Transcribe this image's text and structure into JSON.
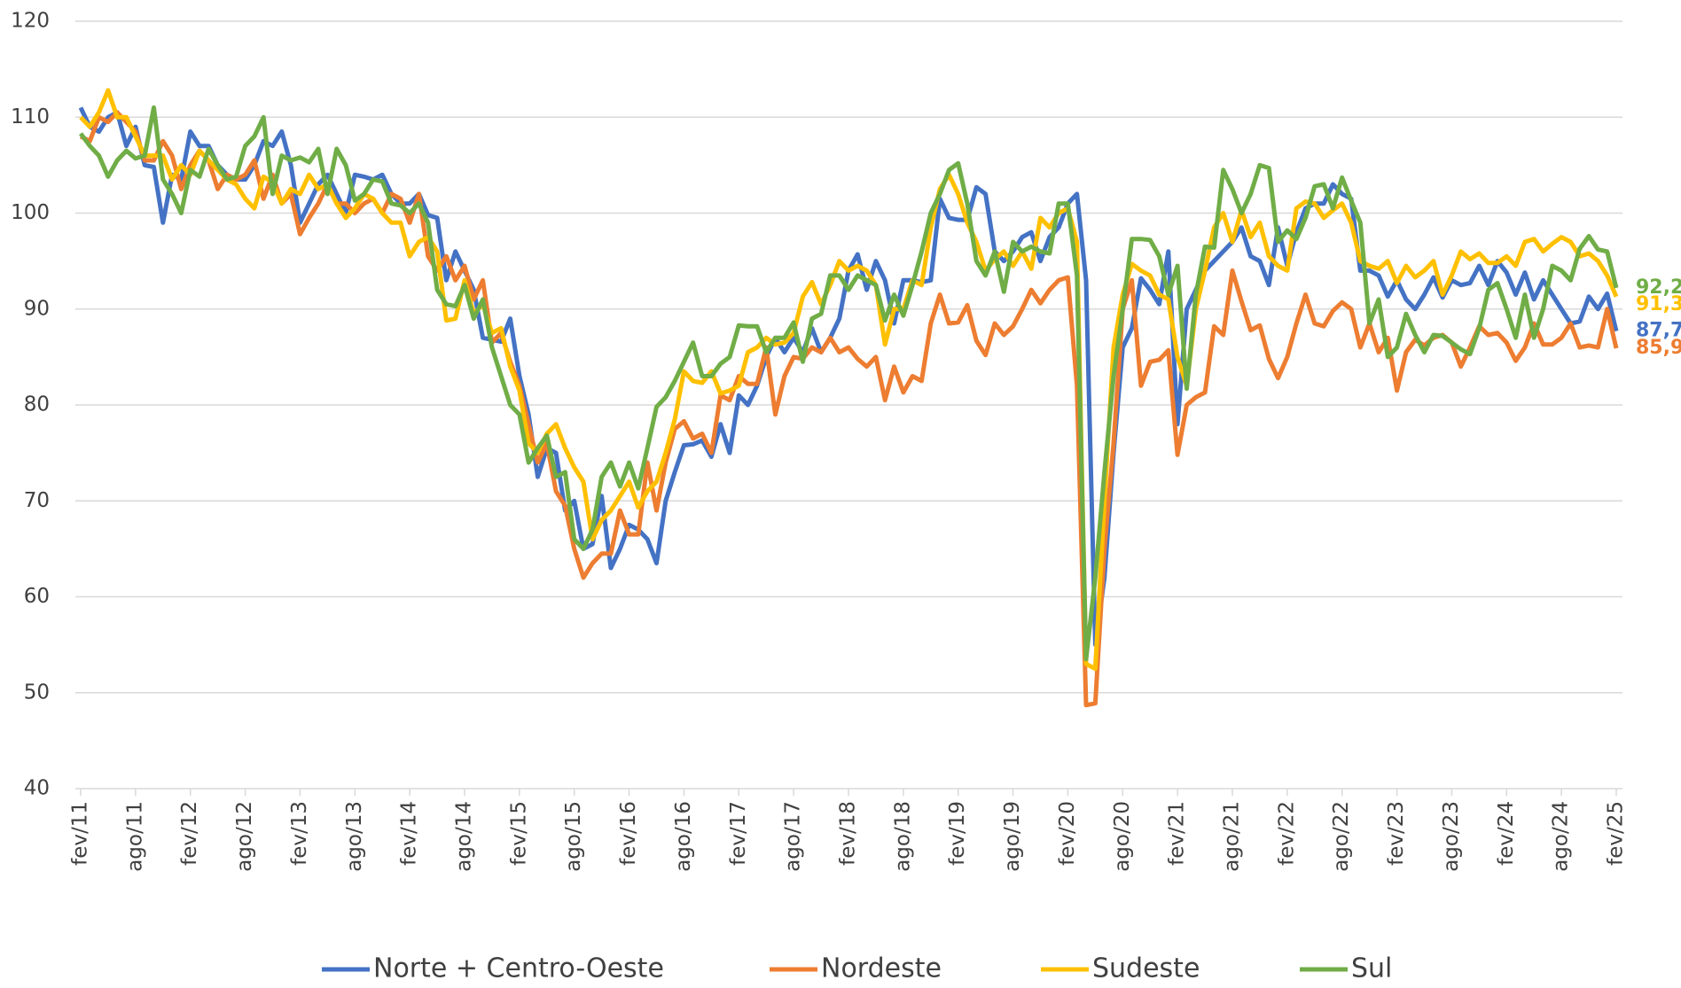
{
  "chart_data": {
    "type": "line",
    "categories": [
      "fev/11",
      null,
      null,
      null,
      null,
      null,
      "ago/11",
      null,
      null,
      null,
      null,
      null,
      "fev/12",
      null,
      null,
      null,
      null,
      null,
      "ago/12",
      null,
      null,
      null,
      null,
      null,
      "fev/13",
      null,
      null,
      null,
      null,
      null,
      "ago/13",
      null,
      null,
      null,
      null,
      null,
      "fev/14",
      null,
      null,
      null,
      null,
      null,
      "ago/14",
      null,
      null,
      null,
      null,
      null,
      "fev/15",
      null,
      null,
      null,
      null,
      null,
      "ago/15",
      null,
      null,
      null,
      null,
      null,
      "fev/16",
      null,
      null,
      null,
      null,
      null,
      "ago/16",
      null,
      null,
      null,
      null,
      null,
      "fev/17",
      null,
      null,
      null,
      null,
      null,
      "ago/17",
      null,
      null,
      null,
      null,
      null,
      "fev/18",
      null,
      null,
      null,
      null,
      null,
      "ago/18",
      null,
      null,
      null,
      null,
      null,
      "fev/19",
      null,
      null,
      null,
      null,
      null,
      "ago/19",
      null,
      null,
      null,
      null,
      null,
      "fev/20",
      null,
      null,
      null,
      null,
      null,
      "ago/20",
      null,
      null,
      null,
      null,
      null,
      "fev/21",
      null,
      null,
      null,
      null,
      null,
      "ago/21",
      null,
      null,
      null,
      null,
      null,
      "fev/22",
      null,
      null,
      null,
      null,
      null,
      "ago/22",
      null,
      null,
      null,
      null,
      null,
      "fev/23",
      null,
      null,
      null,
      null,
      null,
      "ago/23",
      null,
      null,
      null,
      null,
      null,
      "fev/24",
      null,
      null,
      null,
      null,
      null,
      "ago/24",
      null,
      null,
      null,
      null,
      null,
      "fev/25"
    ],
    "series": [
      {
        "name": "Norte + Centro-Oeste",
        "color": "#4472c4",
        "value_labels": {
          "168": "87,7"
        },
        "values": [
          111,
          109,
          108.5,
          110,
          110.5,
          107,
          109,
          105,
          104.8,
          99,
          104,
          103.5,
          108.5,
          107,
          107,
          105,
          104,
          103.5,
          103.5,
          105,
          107.5,
          107,
          108.5,
          105,
          99,
          101,
          103,
          104,
          102,
          100,
          104,
          103.8,
          103.5,
          104,
          102,
          101,
          101,
          102,
          99.8,
          99.5,
          93,
          96,
          94,
          92,
          87,
          86.8,
          86.6,
          89,
          83,
          79,
          72.5,
          75.5,
          75,
          69,
          70,
          65,
          65.5,
          70.5,
          63,
          65,
          67.5,
          67,
          66,
          63.5,
          70,
          73,
          75.8,
          75.9,
          76.3,
          74.6,
          78,
          75,
          81,
          80,
          82,
          85,
          87,
          85.5,
          87,
          85.5,
          88,
          85.5,
          87,
          89,
          94,
          95.7,
          92,
          95,
          93,
          88.5,
          93,
          93,
          92.8,
          93,
          101.5,
          99.5,
          99.3,
          99.3,
          102.7,
          102,
          96,
          95,
          96,
          97.5,
          98,
          95,
          97.5,
          98.5,
          101,
          102,
          93,
          55,
          62,
          75,
          86,
          88,
          93.2,
          92,
          90.5,
          96,
          78,
          90,
          92,
          94,
          95,
          96,
          97,
          98.5,
          95.5,
          95,
          92.5,
          98.5,
          94.5,
          98,
          100.5,
          101,
          101,
          103,
          102,
          101.5,
          94,
          94,
          93.5,
          91.3,
          93,
          91,
          90,
          91.5,
          93.3,
          91.2,
          93,
          92.5,
          92.7,
          94.5,
          92.5,
          95,
          93.8,
          91.5,
          93.8,
          91,
          93,
          91.5,
          90,
          88.5,
          88.7,
          91.3,
          90,
          91.6,
          87.7
        ]
      },
      {
        "name": "Nordeste",
        "color": "#ed7d31",
        "value_labels": {
          "168": "85,9"
        },
        "values": [
          108,
          107.5,
          110,
          109.5,
          110.5,
          109.5,
          108.5,
          105.5,
          105.5,
          107.5,
          106,
          102.5,
          105,
          106.5,
          105.5,
          102.5,
          104,
          103.5,
          104,
          105.5,
          101.5,
          104,
          101,
          102,
          97.8,
          99.5,
          101,
          103,
          101,
          101,
          100,
          101,
          101.5,
          100,
          102,
          101.5,
          99,
          102,
          95.5,
          94,
          95.5,
          93,
          94.5,
          91,
          93,
          86.5,
          87.5,
          84.5,
          82,
          78,
          74,
          76,
          71,
          69.5,
          65,
          62,
          63.5,
          64.5,
          64.5,
          69,
          66.5,
          66.5,
          74,
          69,
          74,
          77.5,
          78.3,
          76.5,
          77,
          75,
          81,
          80.5,
          83,
          82.2,
          82.2,
          86,
          79,
          83,
          85,
          84.8,
          86,
          85.5,
          87,
          85.5,
          86,
          84.8,
          84,
          85,
          80.5,
          84,
          81.3,
          83,
          82.5,
          88.5,
          91.5,
          88.5,
          88.6,
          90.4,
          86.7,
          85.2,
          88.5,
          87.3,
          88.2,
          90,
          92,
          90.6,
          92,
          93,
          93.3,
          82,
          48.7,
          48.9,
          65,
          76,
          90,
          93,
          82,
          84.5,
          84.7,
          85.7,
          74.8,
          80,
          80.8,
          81.3,
          88.2,
          87.3,
          94,
          90.8,
          87.8,
          88.3,
          84.8,
          82.8,
          85,
          88.5,
          91.5,
          88.5,
          88.2,
          89.8,
          90.7,
          90,
          86,
          88.5,
          85.5,
          87,
          81.5,
          85.5,
          86.8,
          86.2,
          87,
          87.3,
          86.5,
          84,
          86,
          88.2,
          87.3,
          87.5,
          86.5,
          84.6,
          86,
          88.5,
          86.3,
          86.3,
          87,
          88.5,
          86,
          86.2,
          86,
          90,
          85.9
        ]
      },
      {
        "name": "Sudeste",
        "color": "#ffc000",
        "value_labels": {
          "168": "91,3"
        },
        "values": [
          110,
          109,
          110.5,
          112.8,
          110,
          110,
          108,
          106,
          106,
          106,
          103.5,
          105,
          104,
          106.5,
          105.5,
          104.5,
          103.5,
          103,
          101.5,
          100.5,
          103.8,
          103.2,
          101,
          102.5,
          102,
          104,
          102.5,
          103,
          101,
          99.5,
          100.5,
          102,
          101.5,
          100,
          99,
          99,
          95.5,
          97,
          97.5,
          96,
          88.8,
          89,
          93,
          89.5,
          90.5,
          87.5,
          88,
          84,
          81.5,
          76,
          75,
          77,
          78,
          75.5,
          73.5,
          72,
          66,
          68,
          69,
          70.5,
          72,
          69.3,
          71,
          72,
          75,
          78.5,
          83.5,
          82.5,
          82.3,
          83.5,
          81.2,
          81.5,
          82,
          85.5,
          86,
          87,
          86.3,
          86.5,
          87.5,
          91.3,
          92.8,
          90.5,
          92.5,
          95,
          94,
          94.5,
          94,
          92.5,
          86.3,
          90,
          90,
          93,
          92.5,
          98.5,
          102.5,
          104,
          102,
          99,
          97,
          94,
          95.2,
          96,
          94.5,
          96,
          94.2,
          99.5,
          98.5,
          100,
          100.5,
          97,
          53,
          52.5,
          70,
          86,
          91.5,
          94.7,
          94,
          93.5,
          91.5,
          91,
          85,
          82,
          90,
          94,
          98.5,
          100,
          97,
          100.3,
          97.5,
          99,
          95.5,
          94.5,
          94,
          100.5,
          101.2,
          101,
          99.5,
          100.3,
          101,
          99,
          95,
          94.5,
          94.2,
          95,
          92.7,
          94.5,
          93.3,
          94,
          95,
          91.5,
          93.5,
          96,
          95.2,
          95.8,
          94.8,
          94.8,
          95.5,
          94.5,
          97,
          97.3,
          96,
          96.8,
          97.5,
          97,
          95.5,
          95.8,
          95,
          93.5,
          91.3
        ]
      },
      {
        "name": "Sul",
        "color": "#70ad47",
        "value_labels": {
          "168": "92,2"
        },
        "values": [
          108.3,
          107,
          106,
          103.8,
          105.5,
          106.5,
          105.7,
          106,
          111,
          103.5,
          102,
          100,
          104.5,
          103.8,
          106.7,
          105,
          103.5,
          103.8,
          107,
          108,
          110,
          102,
          106,
          105.5,
          105.8,
          105.3,
          106.7,
          102,
          106.7,
          105,
          101.3,
          102,
          103.5,
          103.3,
          101,
          100.8,
          100,
          101,
          99,
          92,
          90.5,
          90.3,
          92.5,
          89,
          91,
          86,
          83,
          80,
          79,
          74,
          75.5,
          76.8,
          72.5,
          73,
          66,
          65,
          67,
          72.5,
          74,
          71.5,
          74,
          71.3,
          75.5,
          79.8,
          80.8,
          82.5,
          84.5,
          86.5,
          83,
          83,
          84.3,
          85,
          88.3,
          88.2,
          88.2,
          85.5,
          87,
          87,
          88.6,
          84.5,
          89,
          89.5,
          93.5,
          93.5,
          92,
          93.5,
          93,
          92.5,
          88.8,
          91.5,
          89.3,
          92.5,
          96,
          100,
          102,
          104.5,
          105.2,
          101,
          95,
          93.5,
          96,
          91.8,
          97,
          96,
          96.5,
          96,
          95.8,
          101,
          101,
          93.5,
          53.5,
          62,
          73,
          83,
          90,
          97.3,
          97.3,
          97.2,
          95.5,
          91.5,
          94.5,
          81.7,
          91.5,
          96.5,
          96.4,
          104.5,
          102.5,
          100,
          102,
          105,
          104.7,
          97,
          98.2,
          97.3,
          99.5,
          102.8,
          103,
          100.5,
          103.7,
          101.3,
          99,
          88.5,
          91,
          85,
          86,
          89.5,
          87.3,
          85.5,
          87.3,
          87.2,
          86.5,
          85.8,
          85.3,
          88,
          92,
          92.7,
          90,
          87,
          91.5,
          87,
          90,
          94.5,
          94,
          93,
          96.3,
          97.6,
          96.2,
          96,
          92.2
        ]
      }
    ],
    "ylim": [
      40,
      120
    ],
    "yticks": [
      40,
      50,
      60,
      70,
      80,
      90,
      100,
      110,
      120
    ],
    "grid": true,
    "legend": "bottom"
  }
}
